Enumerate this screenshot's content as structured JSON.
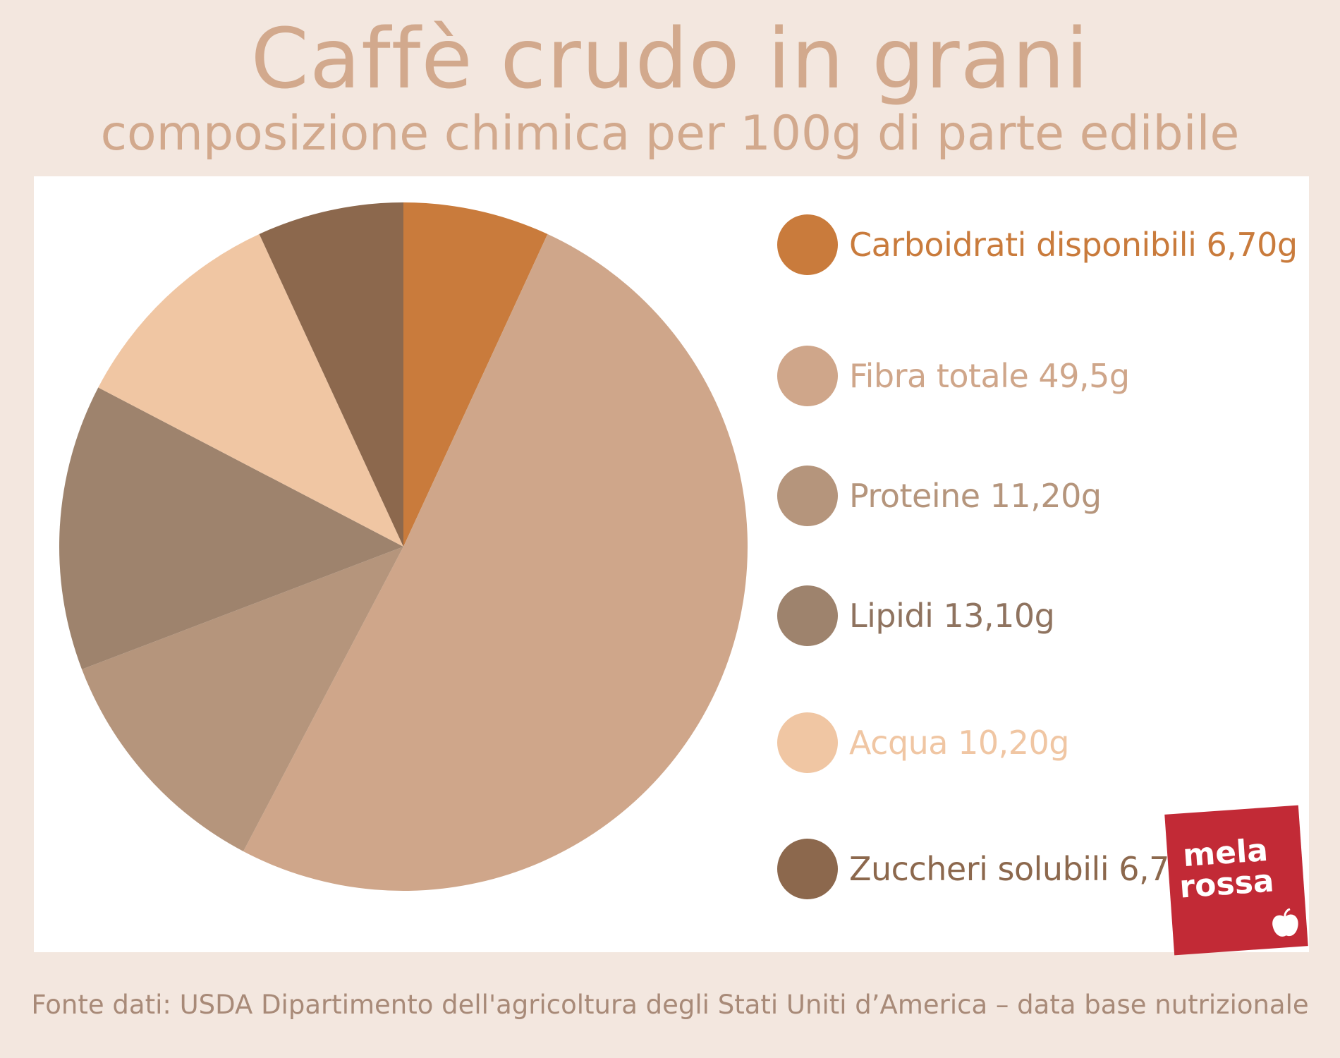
{
  "header": {
    "title": "Caffè crudo in grani",
    "subtitle": "composizione chimica per 100g di parte edibile"
  },
  "chart_data": {
    "type": "pie",
    "categories": [
      "Carboidrati disponibili",
      "Fibra totale",
      "Proteine",
      "Lipidi",
      "Acqua",
      "Zuccheri solubili"
    ],
    "values": [
      6.7,
      49.5,
      11.2,
      13.1,
      10.2,
      6.7
    ],
    "legend": [
      {
        "label": "Carboidrati disponibili 6,70g",
        "color": "#c97b3c",
        "text_color": "#c97b3c"
      },
      {
        "label": "Fibra totale 49,5g",
        "color": "#cfa68a",
        "text_color": "#cfa68a"
      },
      {
        "label": "Proteine 11,20g",
        "color": "#b5957c",
        "text_color": "#b5957c"
      },
      {
        "label": "Lipidi 13,10g",
        "color": "#9e836d",
        "text_color": "#8f735f"
      },
      {
        "label": "Acqua  10,20g",
        "color": "#f0c6a3",
        "text_color": "#f0c6a3"
      },
      {
        "label": "Zuccheri solubili 6,7g",
        "color": "#8c684d",
        "text_color": "#8c684d"
      }
    ],
    "legend_placement": "right"
  },
  "logo": {
    "line1": "mela",
    "line2": "rossa",
    "color": "#c22a36"
  },
  "footer": {
    "source": "Fonte dati: USDA Dipartimento dell'agricoltura degli Stati Uniti d’America – data base nutrizionale"
  }
}
